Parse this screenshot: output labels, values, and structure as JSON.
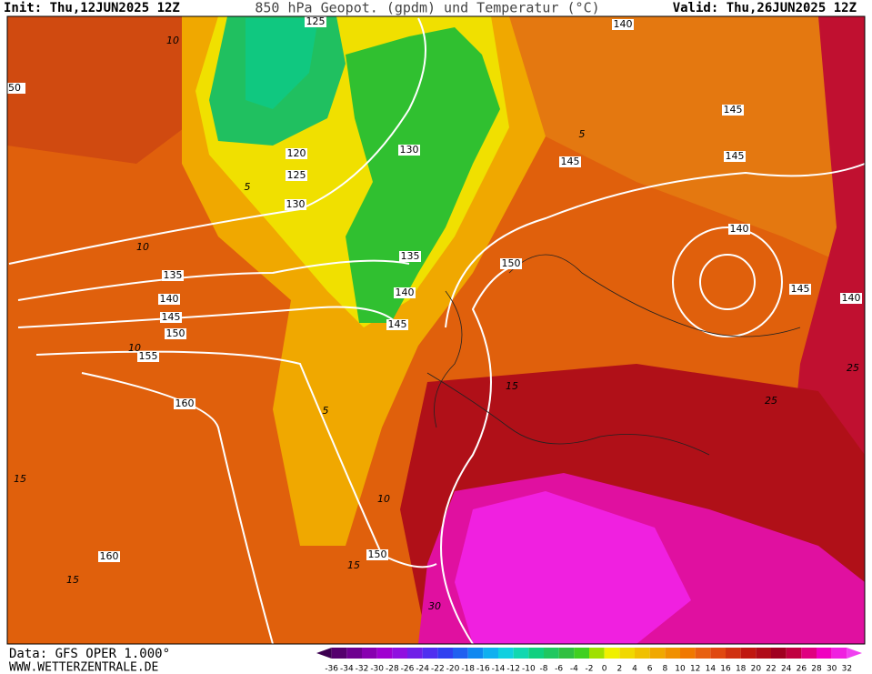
{
  "header": {
    "init": "Init: Thu,12JUN2025 12Z",
    "title": "850 hPa Geopot. (gpdm) und Temperatur (°C)",
    "valid": "Valid: Thu,26JUN2025 12Z"
  },
  "map": {
    "geopotential_labels": [
      "125",
      "140",
      "50",
      "145",
      "145",
      "145",
      "130",
      "120",
      "125",
      "130",
      "140",
      "135",
      "150",
      "135",
      "140",
      "145",
      "140",
      "145",
      "140",
      "145",
      "150",
      "155",
      "160",
      "150",
      "160"
    ],
    "temperature_labels": [
      "10",
      "5",
      "10",
      "10",
      "5",
      "10",
      "15",
      "15",
      "15",
      "25",
      "25",
      "30",
      "5",
      "15"
    ]
  },
  "footer": {
    "data": "Data: GFS OPER 1.000°",
    "url": "WWW.WETTERZENTRALE.DE"
  },
  "colorbar": {
    "labels": [
      "-36",
      "-34",
      "-32",
      "-30",
      "-28",
      "-26",
      "-24",
      "-22",
      "-20",
      "-18",
      "-16",
      "-14",
      "-12",
      "-10",
      "-8",
      "-6",
      "-4",
      "-2",
      "0",
      "2",
      "4",
      "6",
      "8",
      "10",
      "12",
      "14",
      "16",
      "18",
      "20",
      "22",
      "24",
      "26",
      "28",
      "30",
      "32"
    ],
    "colors": [
      "#3c0050",
      "#55006e",
      "#6e0090",
      "#8800b0",
      "#a000d0",
      "#9010e0",
      "#7020e8",
      "#5030f0",
      "#3040f0",
      "#2060f0",
      "#1088f0",
      "#10b0f0",
      "#10d0e0",
      "#10d8b0",
      "#10d080",
      "#20c860",
      "#30c040",
      "#40d020",
      "#a0e000",
      "#f0f000",
      "#f0d800",
      "#f0c000",
      "#f0a800",
      "#f09000",
      "#f07800",
      "#e86010",
      "#e04810",
      "#d03010",
      "#c01810",
      "#b00c18",
      "#a00020",
      "#c00040",
      "#e00080",
      "#f000c0",
      "#f020e0",
      "#f040f0"
    ]
  }
}
